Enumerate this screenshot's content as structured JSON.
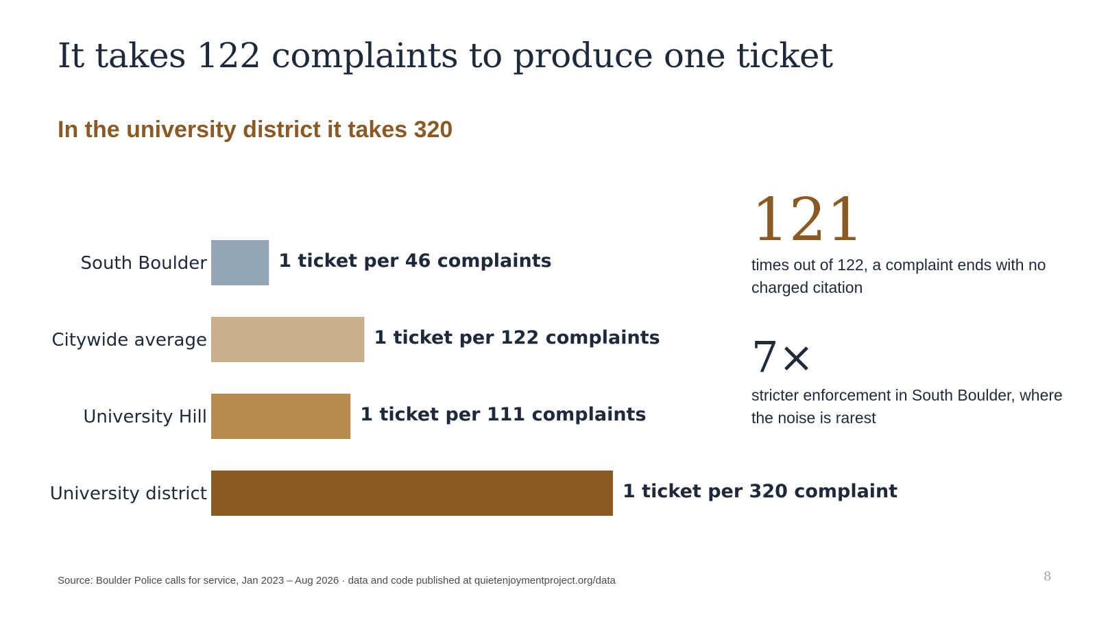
{
  "slide": {
    "title": "It takes 122 complaints to produce one ticket",
    "subtitle": "In the university district it takes 320",
    "footer": "Source: Boulder Police calls for service, Jan 2023 – Aug 2026 · data and code published at quietenjoymentproject.org/data",
    "page_number": "8"
  },
  "stats": [
    {
      "value": "121",
      "description": "times out of 122, a complaint ends with no charged citation",
      "color": "#8b5a24"
    },
    {
      "value": "7×",
      "description": "stricter enforcement in South Boulder, where the noise is rarest",
      "color": "#1e2a3a"
    }
  ],
  "chart_data": {
    "type": "bar",
    "orientation": "horizontal",
    "categories": [
      "South Boulder",
      "Citywide average",
      "University Hill",
      "University district"
    ],
    "values": [
      46,
      122,
      111,
      320
    ],
    "data_labels": [
      "1 ticket per 46 complaints",
      "1 ticket per 122 complaints",
      "1 ticket per 111 complaints",
      "1 ticket per 320 complaint"
    ],
    "colors": [
      "#93a6b8",
      "#c9ae8a",
      "#b88a4e",
      "#8b5a24"
    ],
    "title": "",
    "xlabel": "",
    "ylabel": "",
    "xlim": [
      0,
      320
    ],
    "grid": false,
    "legend": "none"
  }
}
